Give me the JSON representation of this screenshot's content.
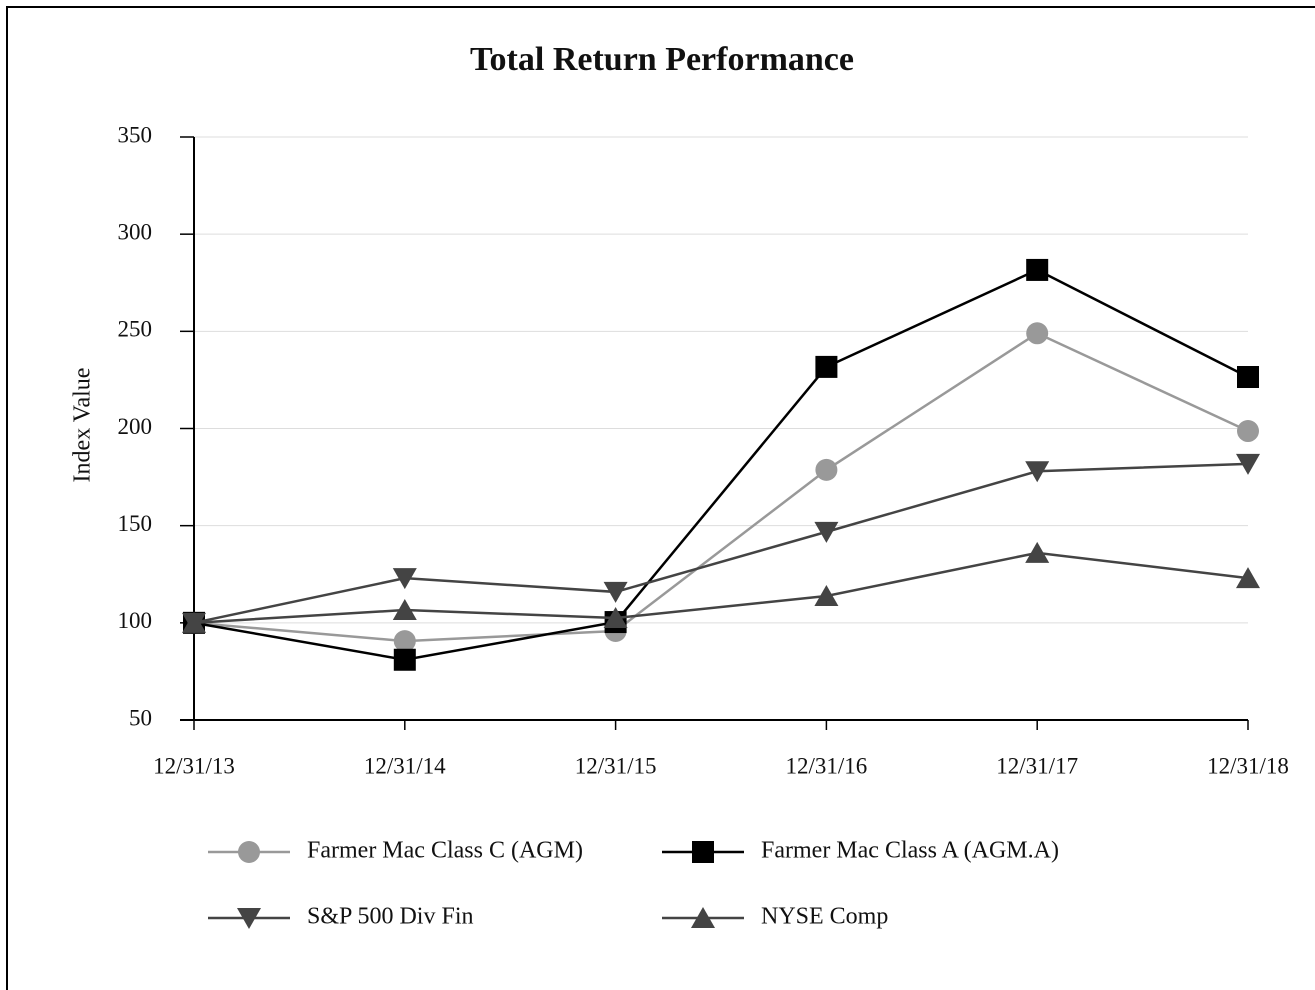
{
  "chart_data": {
    "type": "line",
    "title": "Total Return Performance",
    "y_label": "Index Value",
    "categories": [
      "12/31/13",
      "12/31/14",
      "12/31/15",
      "12/31/16",
      "12/31/17",
      "12/31/18"
    ],
    "series": [
      {
        "name": "Farmer Mac Class C (AGM)",
        "color": "#999999",
        "marker": "circle",
        "values": [
          100,
          90.6,
          95.8,
          178.7,
          249,
          198.7
        ]
      },
      {
        "name": "Farmer Mac Class A (AGM.A)",
        "color": "#000000",
        "marker": "square",
        "values": [
          100,
          81,
          100.4,
          231.7,
          281.6,
          226.5
        ]
      },
      {
        "name": "S&P 500 Div Fin",
        "color": "#444444",
        "marker": "triangle-down",
        "values": [
          100,
          123,
          115.9,
          146.8,
          178,
          181.8
        ]
      },
      {
        "name": "NYSE Comp",
        "color": "#444444",
        "marker": "triangle-up",
        "values": [
          100,
          106.6,
          102.5,
          113.8,
          136,
          123
        ]
      }
    ],
    "ylim": [
      50,
      350
    ],
    "yticks": [
      50,
      100,
      150,
      200,
      250,
      300,
      350
    ],
    "grid": true
  }
}
